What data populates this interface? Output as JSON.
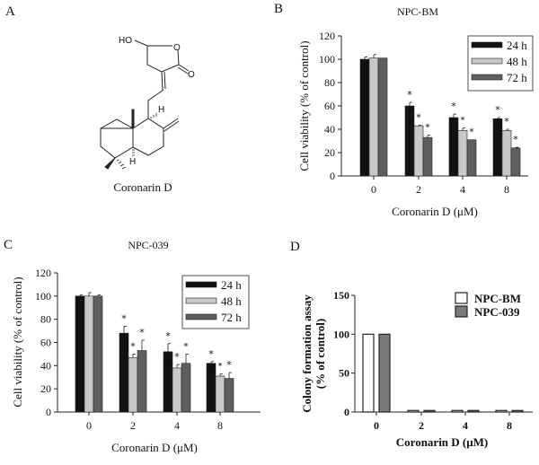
{
  "panel_labels": {
    "a": "A",
    "b": "B",
    "c": "C",
    "d": "D"
  },
  "structure": {
    "caption": "Coronarin D",
    "atom_labels": {
      "ho": "HO",
      "ring_o": "O",
      "carbonyl_o": "O",
      "h9": "H",
      "h5": "H"
    }
  },
  "chart_data": [
    {
      "id": "B",
      "type": "bar",
      "title": "NPC-BM",
      "xlabel": "Coronarin D (μM)",
      "ylabel": "Cell viability (% of control)",
      "categories": [
        "0",
        "2",
        "4",
        "8"
      ],
      "ylim": [
        0,
        120
      ],
      "yticks": [
        "0",
        "20",
        "40",
        "60",
        "80",
        "100",
        "120"
      ],
      "legend_position": "top-right",
      "significance_marker": "*",
      "series": [
        {
          "name": "24 h",
          "color": "#111111",
          "values": [
            100,
            60,
            50,
            49
          ],
          "errors": [
            2,
            3,
            3,
            1
          ],
          "significant": [
            false,
            true,
            true,
            true
          ]
        },
        {
          "name": "48 h",
          "color": "#c8c8c8",
          "values": [
            101,
            43,
            39,
            39
          ],
          "errors": [
            3,
            0.5,
            2,
            1
          ],
          "significant": [
            false,
            true,
            true,
            true
          ]
        },
        {
          "name": "72 h",
          "color": "#5e5e5e",
          "values": [
            101,
            33,
            31,
            24
          ],
          "errors": [
            0,
            2,
            0,
            0.5
          ],
          "significant": [
            false,
            true,
            true,
            true
          ]
        }
      ]
    },
    {
      "id": "C",
      "type": "bar",
      "title": "NPC-039",
      "xlabel": "Coronarin D (μM)",
      "ylabel": "Cell viability (% of control)",
      "categories": [
        "0",
        "2",
        "4",
        "8"
      ],
      "ylim": [
        0,
        120
      ],
      "yticks": [
        "0",
        "20",
        "40",
        "60",
        "80",
        "100",
        "120"
      ],
      "legend_position": "top-right",
      "significance_marker": "*",
      "series": [
        {
          "name": "24 h",
          "color": "#111111",
          "values": [
            100,
            68,
            52,
            42
          ],
          "errors": [
            1,
            6,
            7,
            1.5
          ],
          "significant": [
            false,
            true,
            true,
            true
          ]
        },
        {
          "name": "48 h",
          "color": "#c8c8c8",
          "values": [
            100,
            47,
            38,
            31
          ],
          "errors": [
            3,
            3,
            3,
            2
          ],
          "significant": [
            false,
            true,
            true,
            true
          ]
        },
        {
          "name": "72 h",
          "color": "#5e5e5e",
          "values": [
            100,
            53,
            42,
            29
          ],
          "errors": [
            1,
            9,
            8,
            5
          ],
          "significant": [
            false,
            true,
            true,
            true
          ]
        }
      ]
    },
    {
      "id": "D",
      "type": "bar",
      "title": "",
      "xlabel": "Coronarin D (μM)",
      "ylabel": [
        "Colony formation assay",
        "(% of control)"
      ],
      "categories": [
        "0",
        "2",
        "4",
        "8"
      ],
      "ylim": [
        0,
        150
      ],
      "yticks": [
        "0",
        "50",
        "100",
        "150"
      ],
      "legend_position": "top-right",
      "series": [
        {
          "name": "NPC-BM",
          "color": "#ffffff",
          "values": [
            100,
            2,
            2,
            2
          ],
          "errors": [
            0,
            0,
            0,
            0
          ]
        },
        {
          "name": "NPC-039",
          "color": "#7a7a7a",
          "values": [
            100,
            2,
            2,
            2
          ],
          "errors": [
            0,
            0,
            0,
            0
          ]
        }
      ]
    }
  ]
}
